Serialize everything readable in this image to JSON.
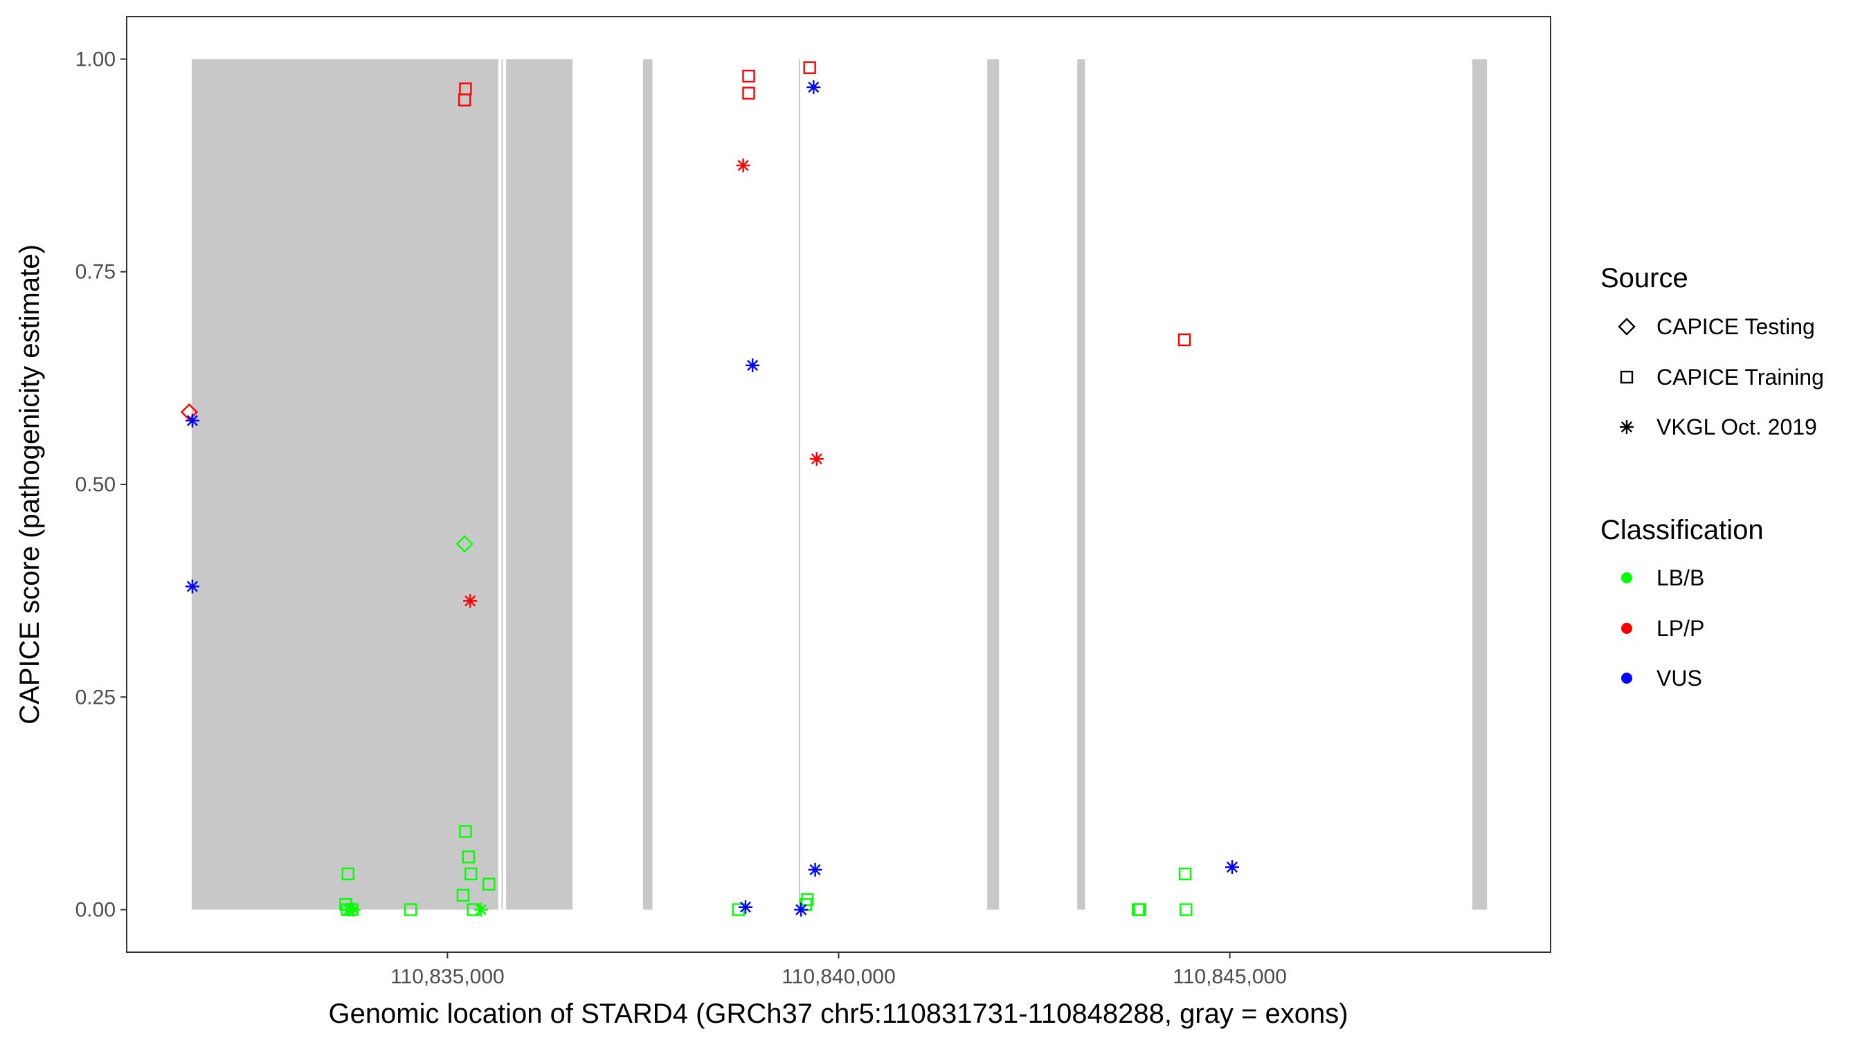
{
  "chart_data": {
    "type": "scatter",
    "title": "",
    "xlabel": "Genomic location of STARD4 (GRCh37 chr5:110831731-110848288, gray = exons)",
    "ylabel": "CAPICE score (pathogenicity estimate)",
    "xlim": [
      110830900,
      110849100
    ],
    "ylim": [
      -0.05,
      1.05
    ],
    "x_ticks": [
      110835000,
      110840000,
      110845000
    ],
    "x_tick_labels": [
      "110,835,000",
      "110,840,000",
      "110,845,000"
    ],
    "y_ticks": [
      0,
      0.25,
      0.5,
      0.75,
      1.0
    ],
    "y_tick_labels": [
      "0.00",
      "0.25",
      "0.50",
      "0.75",
      "1.00"
    ],
    "grid": false,
    "exons": [
      [
        110831731,
        110835650
      ],
      [
        110835750,
        110836600
      ],
      [
        110837500,
        110837620
      ],
      [
        110841900,
        110842050
      ],
      [
        110843050,
        110843150
      ],
      [
        110848100,
        110848288
      ]
    ],
    "thin_lines": [
      110835700,
      110839500
    ],
    "legend": {
      "placement": "right",
      "source_title": "Source",
      "source_items": [
        {
          "label": "CAPICE Testing",
          "shape": "diamond"
        },
        {
          "label": "CAPICE Training",
          "shape": "square"
        },
        {
          "label": "VKGL Oct. 2019",
          "shape": "asterisk"
        }
      ],
      "class_title": "Classification",
      "class_items": [
        {
          "label": "LB/B",
          "color": "#00ff00"
        },
        {
          "label": "LP/P",
          "color": "#ff0000"
        },
        {
          "label": "VUS",
          "color": "#0000ff"
        }
      ]
    },
    "colors": {
      "LB/B": "#00ff00",
      "LP/P": "#ff0000",
      "VUS": "#0000ff"
    },
    "points": [
      {
        "x": 110831700,
        "y": 0.585,
        "source": "diamond",
        "cls": "LP/P"
      },
      {
        "x": 110831740,
        "y": 0.575,
        "source": "asterisk",
        "cls": "VUS"
      },
      {
        "x": 110831740,
        "y": 0.38,
        "source": "asterisk",
        "cls": "VUS"
      },
      {
        "x": 110833730,
        "y": 0.042,
        "source": "square",
        "cls": "LB/B"
      },
      {
        "x": 110833700,
        "y": 0.006,
        "source": "square",
        "cls": "LB/B"
      },
      {
        "x": 110833720,
        "y": 0.0,
        "source": "square",
        "cls": "LB/B"
      },
      {
        "x": 110833780,
        "y": 0.0,
        "source": "square",
        "cls": "LB/B"
      },
      {
        "x": 110833740,
        "y": 0.0,
        "source": "asterisk",
        "cls": "LB/B"
      },
      {
        "x": 110833800,
        "y": 0.0,
        "source": "asterisk",
        "cls": "LB/B"
      },
      {
        "x": 110834530,
        "y": 0.0,
        "source": "square",
        "cls": "LB/B"
      },
      {
        "x": 110835230,
        "y": 0.965,
        "source": "square",
        "cls": "LP/P"
      },
      {
        "x": 110835220,
        "y": 0.952,
        "source": "square",
        "cls": "LP/P"
      },
      {
        "x": 110835220,
        "y": 0.43,
        "source": "diamond",
        "cls": "LB/B"
      },
      {
        "x": 110835290,
        "y": 0.363,
        "source": "asterisk",
        "cls": "LP/P"
      },
      {
        "x": 110835230,
        "y": 0.092,
        "source": "square",
        "cls": "LB/B"
      },
      {
        "x": 110835270,
        "y": 0.062,
        "source": "square",
        "cls": "LB/B"
      },
      {
        "x": 110835300,
        "y": 0.042,
        "source": "square",
        "cls": "LB/B"
      },
      {
        "x": 110835530,
        "y": 0.03,
        "source": "square",
        "cls": "LB/B"
      },
      {
        "x": 110835200,
        "y": 0.017,
        "source": "square",
        "cls": "LB/B"
      },
      {
        "x": 110835330,
        "y": 0.0,
        "source": "square",
        "cls": "LB/B"
      },
      {
        "x": 110835430,
        "y": 0.0,
        "source": "asterisk",
        "cls": "LB/B"
      },
      {
        "x": 110838850,
        "y": 0.98,
        "source": "square",
        "cls": "LP/P"
      },
      {
        "x": 110838850,
        "y": 0.96,
        "source": "square",
        "cls": "LP/P"
      },
      {
        "x": 110838780,
        "y": 0.875,
        "source": "asterisk",
        "cls": "LP/P"
      },
      {
        "x": 110838900,
        "y": 0.64,
        "source": "asterisk",
        "cls": "VUS"
      },
      {
        "x": 110839630,
        "y": 0.99,
        "source": "square",
        "cls": "LP/P"
      },
      {
        "x": 110839680,
        "y": 0.967,
        "source": "asterisk",
        "cls": "VUS"
      },
      {
        "x": 110839720,
        "y": 0.53,
        "source": "asterisk",
        "cls": "LP/P"
      },
      {
        "x": 110839700,
        "y": 0.047,
        "source": "asterisk",
        "cls": "VUS"
      },
      {
        "x": 110839600,
        "y": 0.012,
        "source": "square",
        "cls": "LB/B"
      },
      {
        "x": 110839580,
        "y": 0.006,
        "source": "square",
        "cls": "LB/B"
      },
      {
        "x": 110838720,
        "y": 0.0,
        "source": "square",
        "cls": "LB/B"
      },
      {
        "x": 110838810,
        "y": 0.003,
        "source": "asterisk",
        "cls": "VUS"
      },
      {
        "x": 110839520,
        "y": 0.0,
        "source": "asterisk",
        "cls": "VUS"
      },
      {
        "x": 110844420,
        "y": 0.67,
        "source": "square",
        "cls": "LP/P"
      },
      {
        "x": 110844430,
        "y": 0.042,
        "source": "square",
        "cls": "LB/B"
      },
      {
        "x": 110843850,
        "y": 0.0,
        "source": "square",
        "cls": "LB/B"
      },
      {
        "x": 110843830,
        "y": 0.0,
        "source": "square",
        "cls": "LB/B"
      },
      {
        "x": 110844440,
        "y": 0.0,
        "source": "square",
        "cls": "LB/B"
      },
      {
        "x": 110845030,
        "y": 0.05,
        "source": "asterisk",
        "cls": "VUS"
      }
    ]
  }
}
